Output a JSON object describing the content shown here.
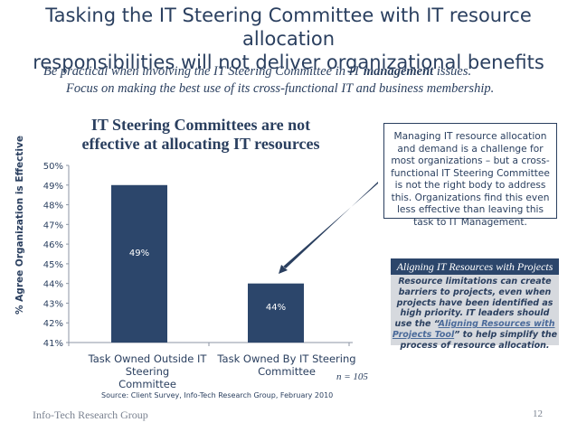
{
  "slide": {
    "title_line1": "Tasking the IT Steering Committee with IT resource allocation",
    "title_line2": "responsibilities will not deliver organizational benefits",
    "subtitle1_pre": "Be practical when involving the IT Steering Committee in IT ",
    "subtitle1_bold": "management",
    "subtitle1_post": " issues.",
    "subtitle2": "Focus on making the best use of its cross-functional IT and business membership."
  },
  "chart_data": {
    "type": "bar",
    "title_line1": "IT Steering Committees are not",
    "title_line2": "effective at allocating IT resources",
    "ylabel": "% Agree Organization is Effective",
    "categories": [
      [
        "Task Owned Outside IT Steering",
        "Committee"
      ],
      [
        "Task Owned By IT Steering",
        "Committee"
      ]
    ],
    "values": [
      49,
      44
    ],
    "data_labels": [
      "49%",
      "44%"
    ],
    "ylim": [
      41,
      50
    ],
    "yticks": [
      "41%",
      "42%",
      "43%",
      "44%",
      "45%",
      "46%",
      "47%",
      "48%",
      "49%",
      "50%"
    ],
    "bar_color": "#2c466b",
    "grid": false
  },
  "callout": {
    "text": "Managing IT resource allocation and demand is a challenge for most organizations – but a cross-functional IT Steering Committee is not the right body to address this. Organizations find this even less effective than leaving this task to IT Management."
  },
  "recommendation": {
    "heading": "Aligning IT Resources with Projects",
    "body_pre": "Resource limitations can create barriers to projects, even when projects have been identified as high priority. IT leaders should use the “",
    "link": "Aligning Resources with Projects Tool",
    "body_post": "” to help simplify the process of resource allocation."
  },
  "notes": {
    "n": "n = 105",
    "source": "Source: Client Survey, Info-Tech Research Group, February 2010"
  },
  "footer": {
    "company": "Info-Tech Research Group",
    "page": "12"
  },
  "colors": {
    "text": "#2a3f5f",
    "bar": "#2c466b",
    "panel": "#d6d9de",
    "footer": "#7a8290"
  }
}
